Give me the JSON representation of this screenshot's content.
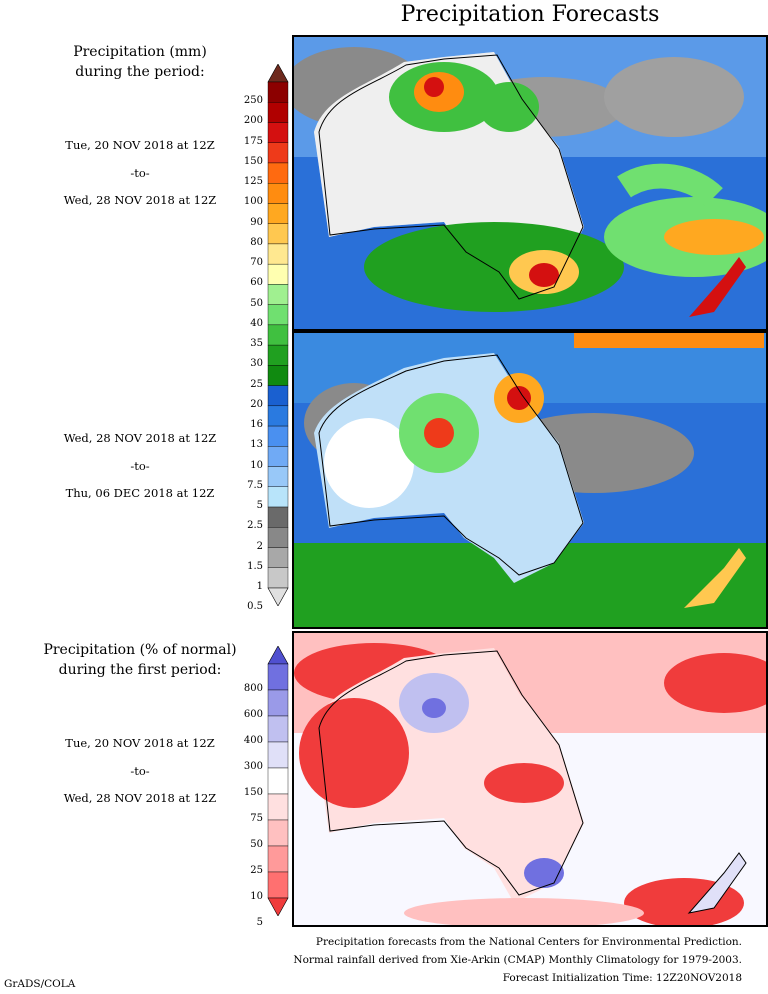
{
  "title": "Precipitation Forecasts",
  "left_heading": {
    "line1": "Precipitation (mm)",
    "line2": "during the period:"
  },
  "period1": {
    "start": "Tue, 20 NOV 2018 at 12Z",
    "sep": "-to-",
    "end": "Wed, 28 NOV 2018 at 12Z"
  },
  "period2": {
    "start": "Wed, 28 NOV 2018 at 12Z",
    "sep": "-to-",
    "end": "Thu, 06 DEC 2018 at 12Z"
  },
  "pct_heading": {
    "line1": "Precipitation (% of normal)",
    "line2": "during the first period:"
  },
  "period3": {
    "start": "Tue, 20 NOV 2018 at 12Z",
    "sep": "-to-",
    "end": "Wed, 28 NOV 2018 at 12Z"
  },
  "mm_scale": {
    "labels": [
      "250",
      "200",
      "175",
      "150",
      "125",
      "100",
      "90",
      "80",
      "70",
      "60",
      "50",
      "40",
      "35",
      "30",
      "25",
      "20",
      "16",
      "13",
      "10",
      "7.5",
      "5",
      "2.5",
      "2",
      "1.5",
      "1",
      "0.5"
    ],
    "colors": [
      "#6e2a1e",
      "#8c0000",
      "#b00000",
      "#d41010",
      "#ee3a1a",
      "#ff6a10",
      "#ff8c10",
      "#ffa820",
      "#ffc850",
      "#ffe890",
      "#ffffb0",
      "#a0f090",
      "#70e070",
      "#40c040",
      "#20a020",
      "#108a10",
      "#1a60d0",
      "#2a7ae0",
      "#4a90f0",
      "#70aaf5",
      "#98c8f8",
      "#b8e4fa",
      "#6a6a6a",
      "#888888",
      "#a8a8a8",
      "#c8c8c8",
      "#e0e0e0"
    ]
  },
  "pct_scale": {
    "labels": [
      "800",
      "600",
      "400",
      "300",
      "150",
      "75",
      "50",
      "25",
      "10",
      "5"
    ],
    "colors": [
      "#5050d0",
      "#7070e0",
      "#9a9ae8",
      "#c0c0f0",
      "#e0e0f8",
      "#ffffff",
      "#ffe0e0",
      "#ffc0c0",
      "#ff9a9a",
      "#ff7070",
      "#f03c3c"
    ]
  },
  "footer": {
    "line1": "Precipitation forecasts from the National Centers for Environmental Prediction.",
    "line2": "Normal rainfall derived from Xie-Arkin (CMAP) Monthly Climatology for 1979-2003.",
    "line3": "Forecast Initialization Time: 12Z20NOV2018"
  },
  "credit": "GrADS/COLA"
}
